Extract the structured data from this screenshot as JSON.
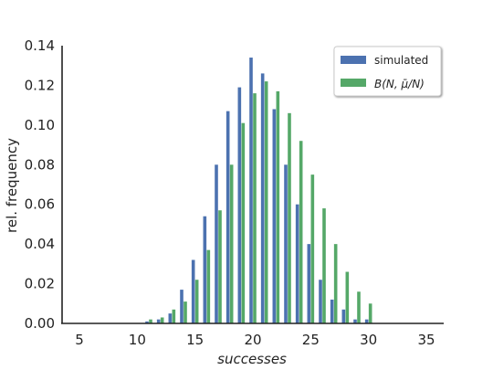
{
  "chart_data": {
    "type": "bar",
    "title": "",
    "xlabel": "successes",
    "ylabel": "rel. frequency",
    "xlim": [
      3.5,
      36.5
    ],
    "ylim": [
      0,
      0.14
    ],
    "xticks": [
      5,
      10,
      15,
      20,
      25,
      30,
      35
    ],
    "xtick_labels": [
      "5",
      "10",
      "15",
      "20",
      "25",
      "30",
      "35"
    ],
    "yticks": [
      0,
      0.02,
      0.04,
      0.06,
      0.08,
      0.1,
      0.12,
      0.14
    ],
    "ytick_labels": [
      "0.00",
      "0.02",
      "0.04",
      "0.06",
      "0.08",
      "0.10",
      "0.12",
      "0.14"
    ],
    "grid": false,
    "legend_position": "top-right",
    "x": [
      11,
      12,
      13,
      14,
      15,
      16,
      17,
      18,
      19,
      20,
      21,
      22,
      23,
      24,
      25,
      26,
      27,
      28,
      29,
      30
    ],
    "series": [
      {
        "name": "simulated",
        "color": "#4c72b0",
        "values": [
          0.001,
          0.002,
          0.005,
          0.017,
          0.032,
          0.054,
          0.08,
          0.107,
          0.119,
          0.134,
          0.126,
          0.108,
          0.08,
          0.06,
          0.04,
          0.022,
          0.012,
          0.007,
          0.002,
          0.002
        ]
      },
      {
        "name": "B(N, μ̄/N)",
        "color": "#55a868",
        "values": [
          0.002,
          0.003,
          0.007,
          0.011,
          0.022,
          0.037,
          0.057,
          0.08,
          0.101,
          0.116,
          0.122,
          0.117,
          0.106,
          0.092,
          0.075,
          0.058,
          0.04,
          0.026,
          0.016,
          0.01
        ]
      }
    ]
  }
}
